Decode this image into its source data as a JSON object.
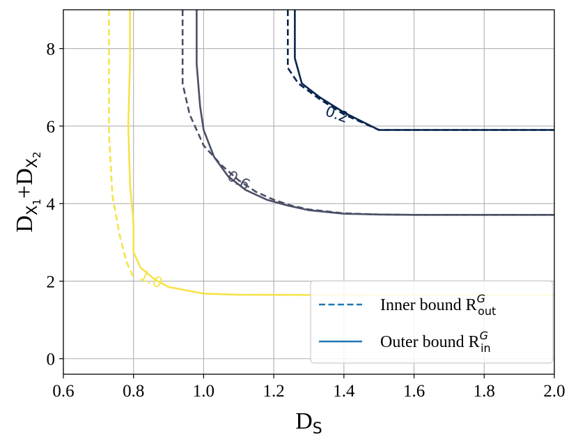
{
  "chart_data": {
    "type": "line",
    "title": "",
    "xlabel": {
      "base": "D",
      "sub": "S"
    },
    "ylabel": {
      "parts": [
        {
          "base": "D",
          "sub": "X",
          "subsub": "1"
        },
        {
          "plus": "+"
        },
        {
          "base": "D",
          "sub": "X",
          "subsub": "2"
        }
      ]
    },
    "xlim": [
      0.6,
      2.0
    ],
    "ylim": [
      -0.4,
      9.0
    ],
    "xticks": [
      "0.6",
      "0.8",
      "1.0",
      "1.2",
      "1.4",
      "1.6",
      "1.8",
      "2.0"
    ],
    "yticks": [
      "0",
      "2",
      "4",
      "6",
      "8"
    ],
    "grid": true,
    "legend": {
      "placement": "lower-right",
      "entries": [
        {
          "text": "Inner bound R",
          "sub": "out",
          "sup": "G",
          "style": "dashed",
          "color": "#1f77b4"
        },
        {
          "text": "Outer bound R",
          "sub": "in",
          "sup": "G",
          "style": "solid",
          "color": "#1f77b4"
        }
      ]
    },
    "series": [
      {
        "name": "0.2 inner bound",
        "level": "0.2",
        "style": "dashed",
        "color": "#08244f",
        "x": [
          1.24,
          1.24,
          1.27,
          1.33,
          1.4,
          1.5,
          2.0
        ],
        "y": [
          9.0,
          7.5,
          7.1,
          6.7,
          6.3,
          5.9,
          5.9
        ]
      },
      {
        "name": "0.2 outer bound",
        "level": "0.2",
        "style": "solid",
        "color": "#08244f",
        "x": [
          1.26,
          1.26,
          1.28,
          1.33,
          1.4,
          1.5,
          2.0
        ],
        "y": [
          9.0,
          7.75,
          7.1,
          6.75,
          6.35,
          5.9,
          5.9
        ]
      },
      {
        "name": "0.6 inner bound",
        "level": "0.6",
        "style": "dashed",
        "color": "#4a4f66",
        "x": [
          0.94,
          0.94,
          0.96,
          1.0,
          1.05,
          1.1,
          1.15,
          1.2,
          1.25,
          1.3,
          1.4,
          1.5,
          1.6,
          2.0
        ],
        "y": [
          9.0,
          7.1,
          6.3,
          5.5,
          5.0,
          4.6,
          4.3,
          4.1,
          3.95,
          3.85,
          3.75,
          3.72,
          3.71,
          3.71
        ]
      },
      {
        "name": "0.6 outer bound",
        "level": "0.6",
        "style": "solid",
        "color": "#4a4f66",
        "x": [
          0.98,
          0.98,
          0.99,
          1.0,
          1.03,
          1.07,
          1.12,
          1.18,
          1.24,
          1.3,
          1.4,
          1.5,
          1.6,
          2.0
        ],
        "y": [
          9.0,
          7.6,
          6.5,
          5.9,
          5.2,
          4.7,
          4.35,
          4.1,
          3.95,
          3.83,
          3.74,
          3.72,
          3.71,
          3.71
        ]
      },
      {
        "name": "1.0 inner bound",
        "level": "1.0",
        "style": "dashed",
        "color": "#f5e34a",
        "x": [
          0.73,
          0.73,
          0.74,
          0.76,
          0.78,
          0.8
        ],
        "y": [
          9.0,
          5.8,
          4.2,
          3.2,
          2.5,
          2.1
        ]
      },
      {
        "name": "1.0 outer bound",
        "level": "1.0",
        "style": "solid",
        "color": "#f5e34a",
        "x": [
          0.79,
          0.79,
          0.785,
          0.79,
          0.8,
          0.8,
          0.82,
          0.86,
          0.9,
          1.0,
          1.1,
          1.5,
          2.0
        ],
        "y": [
          9.0,
          7.7,
          6.0,
          4.5,
          3.5,
          2.75,
          2.35,
          2.05,
          1.85,
          1.68,
          1.65,
          1.64,
          1.64
        ]
      }
    ],
    "contour_labels": [
      {
        "text": "0.2",
        "x": 1.38,
        "y": 6.3,
        "rotation": 20,
        "color": "#08244f"
      },
      {
        "text": "0.6",
        "x": 1.1,
        "y": 4.6,
        "rotation": 30,
        "color": "#4a4f66"
      },
      {
        "text": "1.0",
        "x": 0.85,
        "y": 2.05,
        "rotation": 25,
        "color": "#f5e34a"
      }
    ]
  }
}
